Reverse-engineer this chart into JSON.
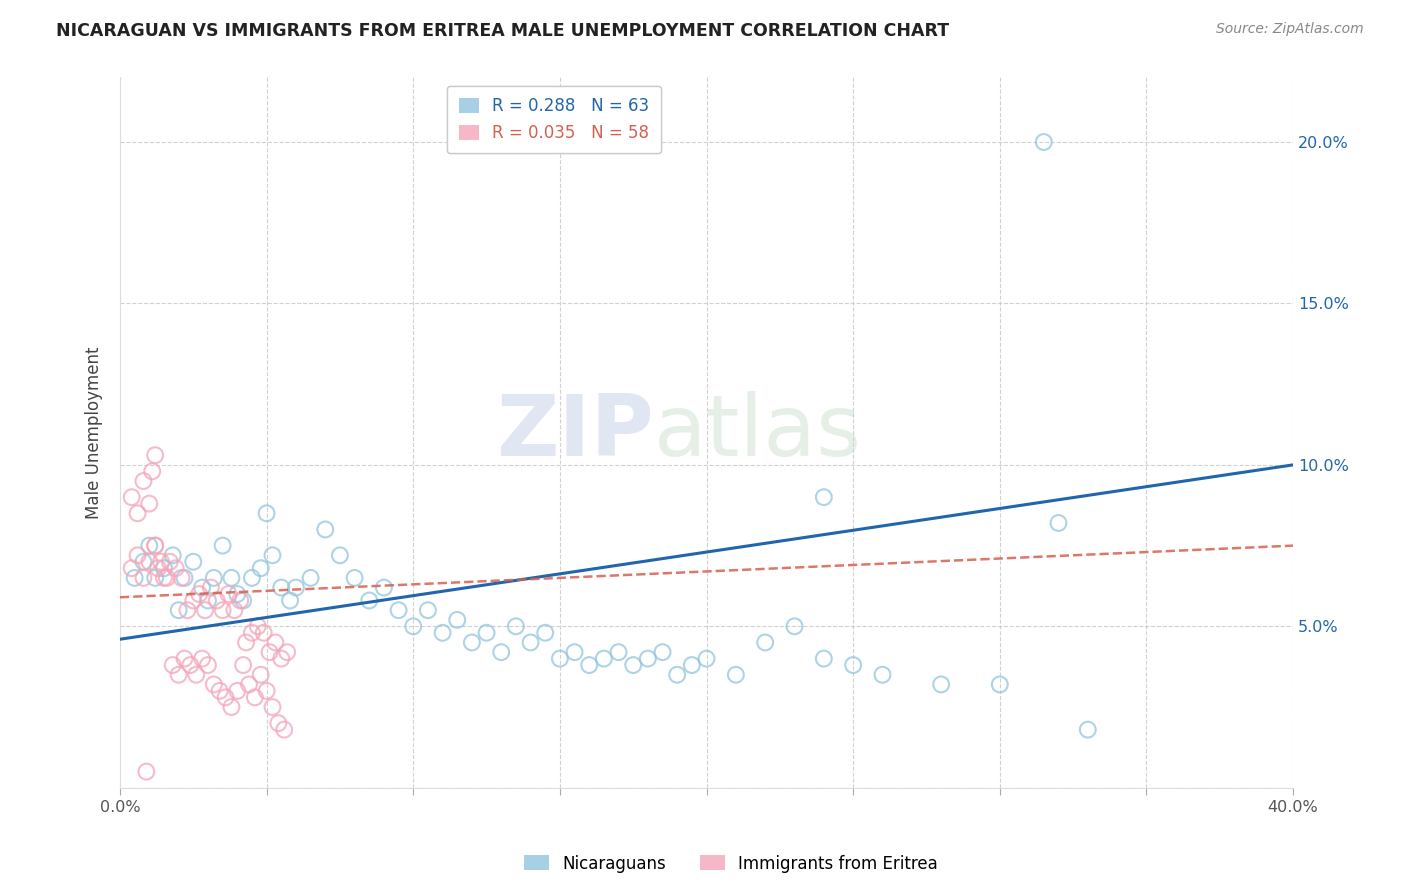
{
  "title": "NICARAGUAN VS IMMIGRANTS FROM ERITREA MALE UNEMPLOYMENT CORRELATION CHART",
  "source": "Source: ZipAtlas.com",
  "ylabel": "Male Unemployment",
  "x_min": 0.0,
  "x_max": 0.4,
  "y_min": 0.0,
  "y_max": 0.22,
  "blue_color": "#92c5de",
  "pink_color": "#f4a5b8",
  "blue_line_color": "#2166ac",
  "pink_line_color": "#d6604d",
  "R_blue": 0.288,
  "N_blue": 63,
  "R_pink": 0.035,
  "N_pink": 58,
  "legend_label_blue": "Nicaraguans",
  "legend_label_pink": "Immigrants from Eritrea",
  "blue_line_start_y": 0.046,
  "blue_line_end_y": 0.1,
  "pink_line_start_y": 0.059,
  "pink_line_end_y": 0.075,
  "blue_scatter_x": [
    0.005,
    0.008,
    0.01,
    0.012,
    0.015,
    0.018,
    0.02,
    0.022,
    0.025,
    0.028,
    0.03,
    0.032,
    0.035,
    0.038,
    0.04,
    0.042,
    0.045,
    0.048,
    0.05,
    0.052,
    0.055,
    0.058,
    0.06,
    0.065,
    0.07,
    0.075,
    0.08,
    0.085,
    0.09,
    0.095,
    0.1,
    0.105,
    0.11,
    0.115,
    0.12,
    0.125,
    0.13,
    0.135,
    0.14,
    0.145,
    0.15,
    0.155,
    0.16,
    0.165,
    0.17,
    0.175,
    0.18,
    0.185,
    0.19,
    0.195,
    0.2,
    0.21,
    0.22,
    0.23,
    0.24,
    0.25,
    0.26,
    0.28,
    0.3,
    0.24,
    0.32,
    0.33,
    0.315
  ],
  "blue_scatter_y": [
    0.065,
    0.07,
    0.075,
    0.065,
    0.068,
    0.072,
    0.055,
    0.065,
    0.07,
    0.062,
    0.058,
    0.065,
    0.075,
    0.065,
    0.06,
    0.058,
    0.065,
    0.068,
    0.085,
    0.072,
    0.062,
    0.058,
    0.062,
    0.065,
    0.08,
    0.072,
    0.065,
    0.058,
    0.062,
    0.055,
    0.05,
    0.055,
    0.048,
    0.052,
    0.045,
    0.048,
    0.042,
    0.05,
    0.045,
    0.048,
    0.04,
    0.042,
    0.038,
    0.04,
    0.042,
    0.038,
    0.04,
    0.042,
    0.035,
    0.038,
    0.04,
    0.035,
    0.045,
    0.05,
    0.04,
    0.038,
    0.035,
    0.032,
    0.032,
    0.09,
    0.082,
    0.018,
    0.2
  ],
  "pink_scatter_x": [
    0.004,
    0.006,
    0.008,
    0.01,
    0.012,
    0.013,
    0.015,
    0.017,
    0.019,
    0.021,
    0.023,
    0.025,
    0.027,
    0.029,
    0.031,
    0.033,
    0.035,
    0.037,
    0.039,
    0.041,
    0.043,
    0.045,
    0.047,
    0.049,
    0.051,
    0.053,
    0.055,
    0.057,
    0.004,
    0.006,
    0.008,
    0.01,
    0.012,
    0.014,
    0.016,
    0.018,
    0.02,
    0.022,
    0.024,
    0.026,
    0.028,
    0.03,
    0.032,
    0.034,
    0.036,
    0.038,
    0.04,
    0.042,
    0.044,
    0.046,
    0.048,
    0.05,
    0.052,
    0.054,
    0.056,
    0.009,
    0.011,
    0.012
  ],
  "pink_scatter_y": [
    0.068,
    0.072,
    0.065,
    0.07,
    0.075,
    0.068,
    0.065,
    0.07,
    0.068,
    0.065,
    0.055,
    0.058,
    0.06,
    0.055,
    0.062,
    0.058,
    0.055,
    0.06,
    0.055,
    0.058,
    0.045,
    0.048,
    0.05,
    0.048,
    0.042,
    0.045,
    0.04,
    0.042,
    0.09,
    0.085,
    0.095,
    0.088,
    0.075,
    0.07,
    0.065,
    0.038,
    0.035,
    0.04,
    0.038,
    0.035,
    0.04,
    0.038,
    0.032,
    0.03,
    0.028,
    0.025,
    0.03,
    0.038,
    0.032,
    0.028,
    0.035,
    0.03,
    0.025,
    0.02,
    0.018,
    0.005,
    0.098,
    0.103
  ]
}
